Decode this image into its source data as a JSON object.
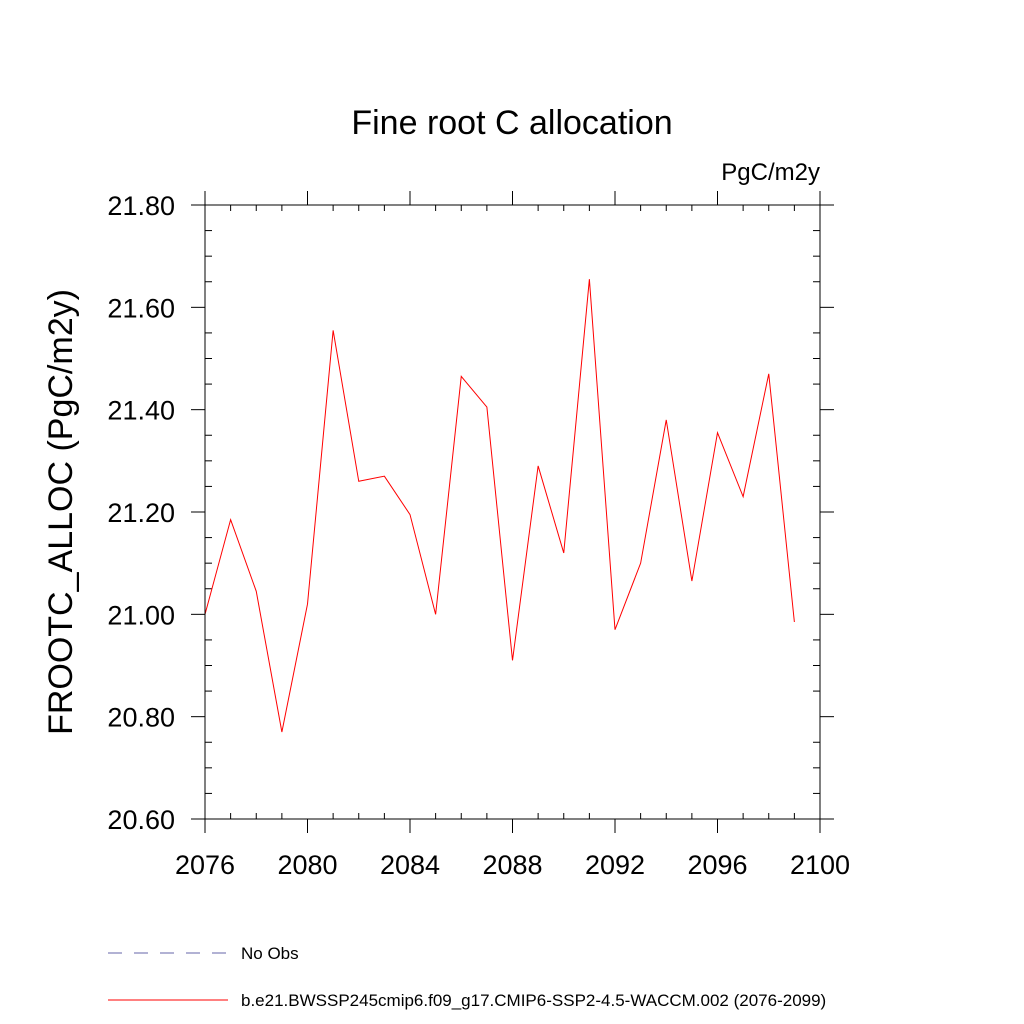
{
  "chart_data": {
    "type": "line",
    "title": "Fine root C allocation",
    "units": "PgC/m2y",
    "xlabel": "",
    "ylabel": "FROOTC_ALLOC  (PgC/m2y)",
    "xlim": [
      2076,
      2100
    ],
    "ylim": [
      20.6,
      21.8
    ],
    "x_ticks": [
      2076,
      2080,
      2084,
      2088,
      2092,
      2096,
      2100
    ],
    "x_tick_labels": [
      "2076",
      "2080",
      "2084",
      "2088",
      "2092",
      "2096",
      "2100"
    ],
    "y_ticks": [
      20.6,
      20.8,
      21.0,
      21.2,
      21.4,
      21.6,
      21.8
    ],
    "y_tick_labels": [
      "20.60",
      "20.80",
      "21.00",
      "21.20",
      "21.40",
      "21.60",
      "21.80"
    ],
    "x": [
      2076,
      2077,
      2078,
      2079,
      2080,
      2081,
      2082,
      2083,
      2084,
      2085,
      2086,
      2087,
      2088,
      2089,
      2090,
      2091,
      2092,
      2093,
      2094,
      2095,
      2096,
      2097,
      2098,
      2099
    ],
    "series": [
      {
        "name": "b.e21.BWSSP245cmip6.f09_g17.CMIP6-SSP2-4.5-WACCM.002 (2076-2099)",
        "color": "#ff0000",
        "values": [
          21.0,
          21.185,
          21.045,
          20.77,
          21.02,
          21.555,
          21.26,
          21.27,
          21.195,
          21.0,
          21.465,
          21.405,
          20.91,
          21.29,
          21.12,
          21.655,
          20.97,
          21.1,
          21.38,
          21.065,
          21.355,
          21.23,
          21.47,
          20.985
        ]
      }
    ],
    "legend": [
      {
        "label": "No Obs",
        "style": "dashed",
        "color": "#6666aa"
      },
      {
        "label": "b.e21.BWSSP245cmip6.f09_g17.CMIP6-SSP2-4.5-WACCM.002 (2076-2099)",
        "style": "solid",
        "color": "#ff0000"
      }
    ]
  }
}
